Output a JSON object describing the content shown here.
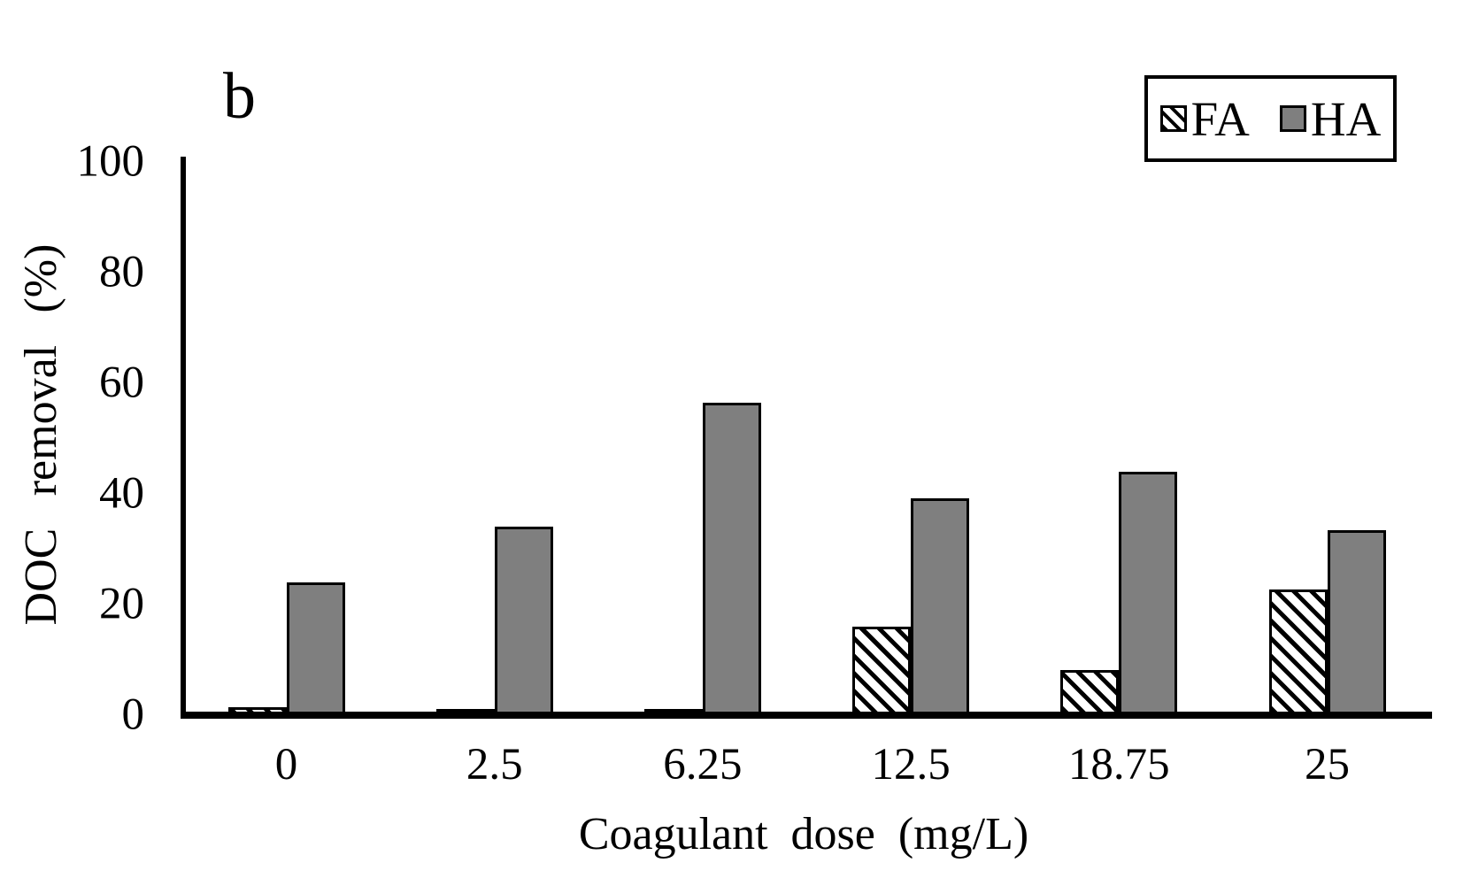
{
  "figure_label": "b",
  "legend": {
    "items": [
      {
        "label": "FA",
        "swatch": "diagonal-hatch"
      },
      {
        "label": "HA",
        "swatch": "solid-gray"
      }
    ]
  },
  "colors": {
    "ha_fill": "#7F7F7F",
    "fa_fill": "#FFFFFF",
    "hatch": "#000000",
    "axis": "#000000",
    "background": "#FFFFFF"
  },
  "chart_data": {
    "type": "bar",
    "title": "",
    "panel_label": "b",
    "xlabel": "Coagulant dose (mg/L)",
    "ylabel": "DOC removal (%)",
    "categories": [
      "0",
      "2.5",
      "6.25",
      "12.5",
      "18.75",
      "25"
    ],
    "series": [
      {
        "name": "FA",
        "values": [
          1.4,
          1.1,
          1.1,
          16.0,
          8.2,
          22.7
        ]
      },
      {
        "name": "HA",
        "values": [
          24.0,
          34.0,
          56.5,
          39.2,
          44.0,
          33.4
        ]
      }
    ],
    "ylim": [
      0,
      100
    ],
    "yticks": [
      0,
      20,
      40,
      60,
      80,
      100
    ],
    "grid": false,
    "legend_position": "top-right"
  }
}
